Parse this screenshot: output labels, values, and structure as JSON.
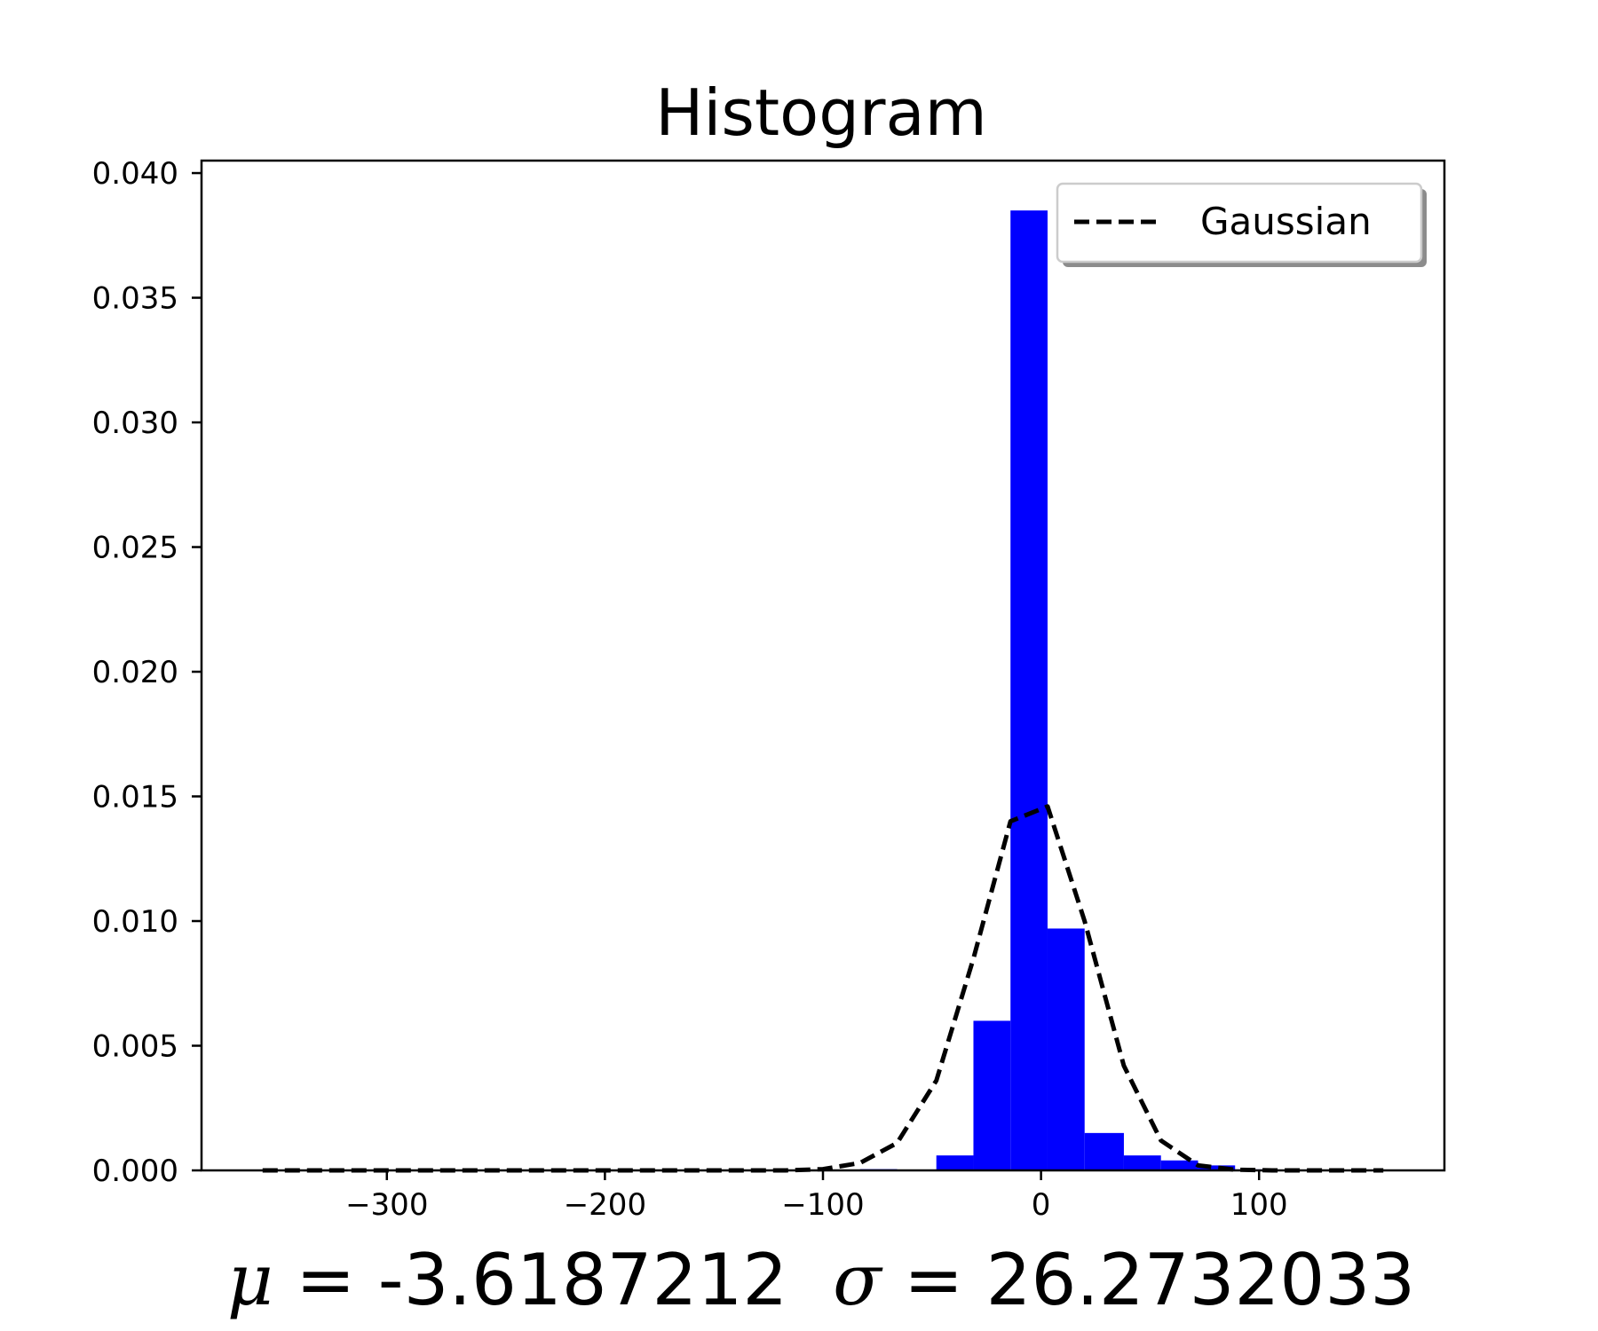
{
  "chart_data": {
    "type": "bar",
    "title": "Histogram",
    "xlabel": {
      "mu_symbol": "μ",
      "mu_value": " = -3.6187212  ",
      "sigma_symbol": "σ",
      "sigma_value": " = 26.2732033"
    },
    "ylabel": "",
    "xlim": [
      -385,
      185
    ],
    "ylim": [
      0,
      0.0405
    ],
    "x_ticks": [
      {
        "value": -300,
        "label": "−300"
      },
      {
        "value": -200,
        "label": "−200"
      },
      {
        "value": -100,
        "label": "−100"
      },
      {
        "value": 0,
        "label": "0"
      },
      {
        "value": 100,
        "label": "100"
      }
    ],
    "y_ticks": [
      {
        "value": 0.0,
        "label": "0.000"
      },
      {
        "value": 0.005,
        "label": "0.005"
      },
      {
        "value": 0.01,
        "label": "0.010"
      },
      {
        "value": 0.015,
        "label": "0.015"
      },
      {
        "value": 0.02,
        "label": "0.020"
      },
      {
        "value": 0.025,
        "label": "0.025"
      },
      {
        "value": 0.03,
        "label": "0.030"
      },
      {
        "value": 0.035,
        "label": "0.035"
      },
      {
        "value": 0.04,
        "label": "0.040"
      }
    ],
    "bar_color": "#0000ff",
    "bins": [
      {
        "x0": -357,
        "x1": -340,
        "value": 3e-05
      },
      {
        "x0": -306,
        "x1": -289,
        "value": 2e-05
      },
      {
        "x0": -254,
        "x1": -237,
        "value": 2e-05
      },
      {
        "x0": -203,
        "x1": -186,
        "value": 2e-05
      },
      {
        "x0": -83,
        "x1": -66,
        "value": 5e-05
      },
      {
        "x0": -48,
        "x1": -31,
        "value": 0.0006
      },
      {
        "x0": -31,
        "x1": -14,
        "value": 0.006
      },
      {
        "x0": -14,
        "x1": 3,
        "value": 0.0385
      },
      {
        "x0": 3,
        "x1": 20,
        "value": 0.0097
      },
      {
        "x0": 20,
        "x1": 38,
        "value": 0.0015
      },
      {
        "x0": 38,
        "x1": 55,
        "value": 0.0006
      },
      {
        "x0": 55,
        "x1": 72,
        "value": 0.0004
      },
      {
        "x0": 72,
        "x1": 89,
        "value": 0.0002
      },
      {
        "x0": 89,
        "x1": 106,
        "value": 4e-05
      },
      {
        "x0": 140,
        "x1": 157,
        "value": 2e-05
      }
    ],
    "series": [
      {
        "name": "Gaussian",
        "style": "dashed",
        "color": "#000000",
        "x": [
          -357,
          -323,
          -289,
          -254,
          -220,
          -186,
          -151,
          -117,
          -100,
          -83,
          -66,
          -48,
          -31,
          -14,
          3,
          20,
          38,
          55,
          72,
          89,
          106,
          123,
          140,
          157
        ],
        "y": [
          0.0,
          0.0,
          0.0,
          0.0,
          0.0,
          0.0,
          0.0,
          0.0,
          5e-05,
          0.0003,
          0.0011,
          0.0036,
          0.0085,
          0.014,
          0.0146,
          0.01,
          0.0042,
          0.0012,
          0.0002,
          3e-05,
          0.0,
          0.0,
          0.0,
          0.0
        ]
      }
    ],
    "legend_position": "top-right",
    "grid": false
  }
}
